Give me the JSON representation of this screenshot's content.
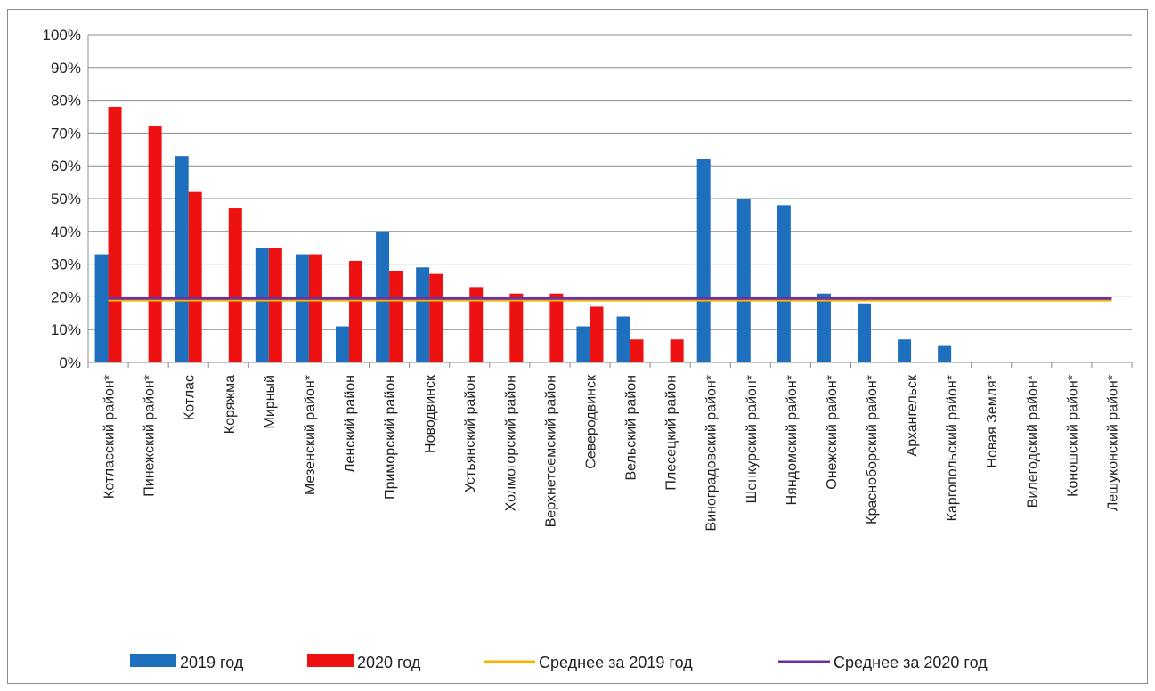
{
  "chart_data": {
    "type": "bar",
    "title": "",
    "xlabel": "",
    "ylabel": "",
    "ylim": [
      0,
      100
    ],
    "y_tick_format": "percent",
    "y_ticks": [
      "0%",
      "10%",
      "20%",
      "30%",
      "40%",
      "50%",
      "60%",
      "70%",
      "80%",
      "90%",
      "100%"
    ],
    "grid": true,
    "legend_position": "bottom",
    "categories": [
      "Котласский район*",
      "Пинежский район*",
      "Котлас",
      "Коряжма",
      "Мирный",
      "Мезенский район*",
      "Ленский район",
      "Приморский район",
      "Новодвинск",
      "Устьянский район",
      "Холмогорский район",
      "Верхнетоемский район",
      "Северодвинск",
      "Вельский район",
      "Плесецкий район",
      "Виноградовский район*",
      "Шенкурский район*",
      "Няндомский район*",
      "Онежский район*",
      "Красноборский район*",
      "Архангельск",
      "Каргопольский район*",
      "Новая Земля*",
      "Вилегодский район*",
      "Коношский район*",
      "Лешуконский район*"
    ],
    "series": [
      {
        "name": "2019 год",
        "color": "#1f6fbf",
        "values": [
          33,
          0,
          63,
          0,
          35,
          33,
          11,
          40,
          29,
          0,
          0,
          0,
          11,
          14,
          0,
          62,
          50,
          48,
          21,
          18,
          7,
          5,
          0,
          0,
          0,
          0
        ]
      },
      {
        "name": "2020 год",
        "color": "#ee1111",
        "values": [
          78,
          72,
          52,
          47,
          35,
          33,
          31,
          28,
          27,
          23,
          21,
          21,
          17,
          7,
          7,
          0,
          0,
          0,
          0,
          0,
          0,
          0,
          0,
          0,
          0,
          0
        ]
      }
    ],
    "lines": [
      {
        "name": "Среднее за 2019 год",
        "color": "#f5b400",
        "value": 19
      },
      {
        "name": "Среднее за 2020 год",
        "color": "#7030a0",
        "value": 19.5
      }
    ]
  }
}
